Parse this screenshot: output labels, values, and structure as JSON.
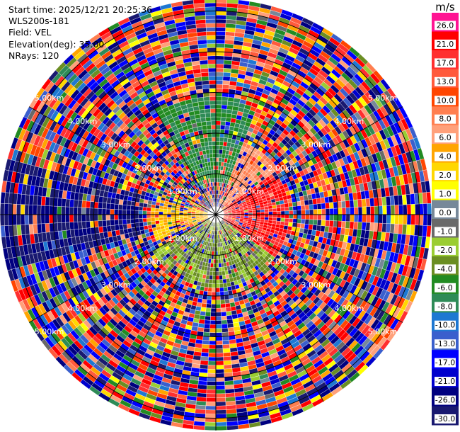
{
  "header": {
    "start_time": "Start time: 2025/12/21 20:25:36",
    "site": "WLS200s-181",
    "field": "Field: VEL",
    "elevation": "Elevation(deg): 35.00",
    "nrays": "NRays: 120"
  },
  "colorbar": {
    "unit": "m/s",
    "ticks": [
      "26.0",
      "21.0",
      "17.0",
      "13.0",
      "10.0",
      "8.0",
      "6.0",
      "4.0",
      "2.0",
      "1.0",
      "0.0",
      "-1.0",
      "-2.0",
      "-4.0",
      "-6.0",
      "-8.0",
      "-10.0",
      "-13.0",
      "-17.0",
      "-21.0",
      "-26.0",
      "-30.0"
    ],
    "colors": [
      "#ff1493",
      "#ff0000",
      "#ff2f2f",
      "#ff5a3c",
      "#ff4500",
      "#ff7f50",
      "#ffa07a",
      "#ffa500",
      "#ffd700",
      "#ffff00",
      "#778899",
      "#696969",
      "#9acd32",
      "#6b8e23",
      "#228b22",
      "#2e8b57",
      "#1e78d2",
      "#3a5fcd",
      "#0000ff",
      "#0000cd",
      "#000080",
      "#191970"
    ]
  },
  "chart_data": {
    "type": "heatmap",
    "projection": "polar PPI",
    "field": "VEL",
    "unit": "m/s",
    "nrays": 120,
    "elevation_deg": 35.0,
    "range_rings_km": [
      "1.00km",
      "2.00km",
      "3.00km",
      "4.00km",
      "5.00km"
    ],
    "azimuth_spokes_deg": [
      0,
      30,
      60,
      90,
      120,
      150,
      180,
      210,
      240,
      270,
      300,
      330
    ],
    "max_range_km": 5.3,
    "sectors": [
      {
        "name": "near-field east (receding)",
        "azimuth_deg": [
          55,
          125
        ],
        "range_km": [
          0.2,
          1.8
        ],
        "value_ms": 21.0
      },
      {
        "name": "near-field northeast",
        "azimuth_deg": [
          20,
          55
        ],
        "range_km": [
          0.3,
          1.9
        ],
        "value_ms": 8.0
      },
      {
        "name": "near-field north",
        "azimuth_deg": [
          -30,
          20
        ],
        "range_km": [
          0.8,
          2.9
        ],
        "value_ms": -6.0
      },
      {
        "name": "near-field west",
        "azimuth_deg": [
          245,
          285
        ],
        "range_km": [
          0.2,
          1.6
        ],
        "value_ms": 4.0
      },
      {
        "name": "near-field south",
        "azimuth_deg": [
          120,
          240
        ],
        "range_km": [
          0.2,
          1.8
        ],
        "value_ms": -2.0
      },
      {
        "name": "west beam (approaching)",
        "azimuth_deg": [
          255,
          285
        ],
        "range_km": [
          1.8,
          5.3
        ],
        "value_ms": -26.0
      }
    ],
    "far_field": "noise, random values across -30.0 to 26.0 m/s",
    "colorbar_range": [
      -30.0,
      26.0
    ]
  }
}
